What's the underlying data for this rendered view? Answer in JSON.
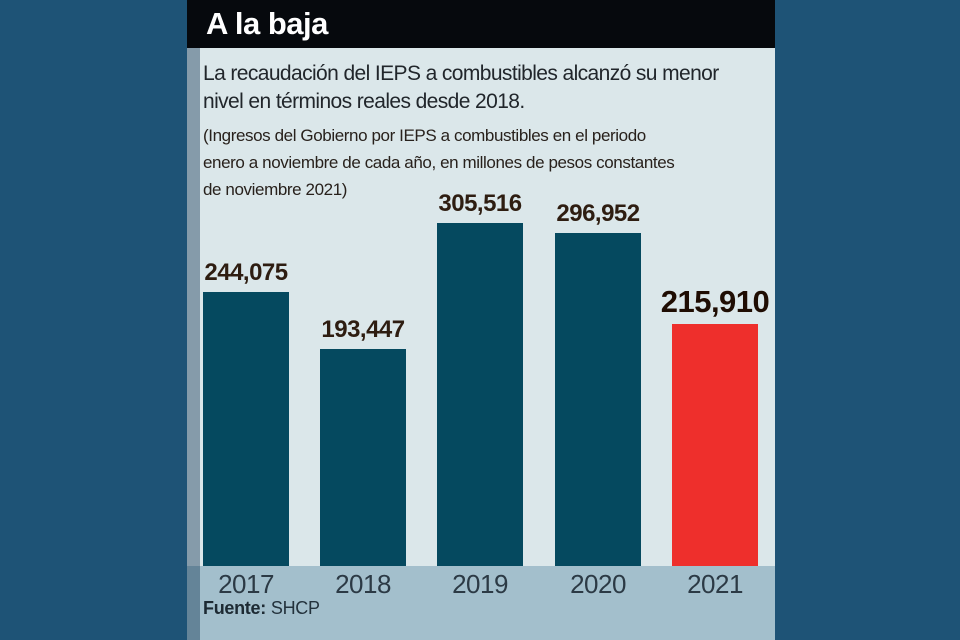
{
  "colors": {
    "page-bg": "#1e5376",
    "card-bg": "#dbe7ea",
    "header-bg": "#06090d",
    "header-text": "#ffffff",
    "band-bg": "#a3bfcc",
    "bar-teal": "#05495f",
    "bar-red": "#ee2f2c",
    "text-dark": "#21262b",
    "label-dark": "#2e1d11"
  },
  "card": {
    "header": {
      "title": "A la baja"
    },
    "subtitle_lines": [
      "La recaudación del IEPS a combustibles alcanzó su menor",
      "nivel en términos reales desde 2018."
    ],
    "note_lines": [
      "(Ingresos del Gobierno por IEPS a combustibles en el periodo",
      "enero a noviembre de cada año, en millones de pesos constantes",
      "de noviembre 2021)"
    ],
    "source": {
      "label": "Fuente:",
      "value": "SHCP"
    }
  },
  "chart_data": {
    "type": "bar",
    "title": "A la baja",
    "categories": [
      "2017",
      "2018",
      "2019",
      "2020",
      "2021"
    ],
    "values": [
      244075,
      193447,
      305516,
      296952,
      215910
    ],
    "value_labels": [
      "244,075",
      "193,447",
      "305,516",
      "296,952",
      "215,910"
    ],
    "bar_colors": [
      "#05495f",
      "#05495f",
      "#05495f",
      "#05495f",
      "#ee2f2c"
    ],
    "highlight_index": 4,
    "xlabel": "",
    "ylabel": "",
    "ylim": [
      0,
      305516
    ],
    "grid": false,
    "legend": "none",
    "source": "SHCP"
  }
}
